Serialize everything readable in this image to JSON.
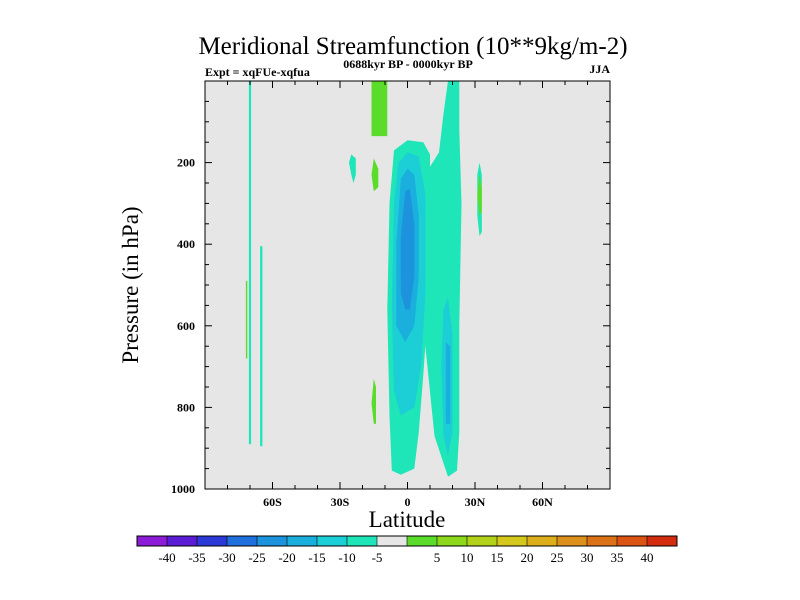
{
  "chart_data": {
    "type": "heatmap",
    "title": "Meridional Streamfunction (10**9kg/m-2)",
    "subtitle_left": "Expt = xqFUe-xqfua",
    "subtitle_center": "0688kyr BP - 0000kyr BP",
    "subtitle_right": "JJA",
    "xlabel": "Latitude",
    "ylabel": "Pressure (in hPa)",
    "xlim": [
      -90,
      90
    ],
    "ylim": [
      1000,
      0
    ],
    "x_ticks": [
      {
        "value": -60,
        "label": "60S"
      },
      {
        "value": -30,
        "label": "30S"
      },
      {
        "value": 0,
        "label": "0"
      },
      {
        "value": 30,
        "label": "30N"
      },
      {
        "value": 60,
        "label": "60N"
      }
    ],
    "y_ticks": [
      {
        "value": 200,
        "label": "200"
      },
      {
        "value": 400,
        "label": "400"
      },
      {
        "value": 600,
        "label": "600"
      },
      {
        "value": 800,
        "label": "800"
      },
      {
        "value": 1000,
        "label": "1000"
      }
    ],
    "colorbar": {
      "colors": [
        "#8c1cd6",
        "#5a1cd4",
        "#2b3ad6",
        "#1f6fdc",
        "#1c93dc",
        "#1aafdc",
        "#1ccfd6",
        "#1ee6b8",
        "#e6e6e6",
        "#5cdc2a",
        "#8cd81a",
        "#b2d21a",
        "#d4c81c",
        "#dcae1c",
        "#dc901c",
        "#dc7218",
        "#dc5414",
        "#d42c0e"
      ],
      "labels": [
        "-40",
        "-35",
        "-30",
        "-25",
        "-20",
        "-15",
        "-10",
        "-5",
        "5",
        "10",
        "15",
        "20",
        "25",
        "30",
        "35",
        "40"
      ]
    },
    "level_colors": {
      "n20": "#1c93dc",
      "n15": "#1aafdc",
      "n10": "#1ccfd6",
      "n5": "#1ee6b8",
      "p5": "#5cdc2a"
    },
    "regions": [
      {
        "level": "n5",
        "sign": "negative",
        "points": [
          [
            -7,
            955
          ],
          [
            -8,
            820
          ],
          [
            -9,
            560
          ],
          [
            -8,
            300
          ],
          [
            -6,
            170
          ],
          [
            0,
            145
          ],
          [
            7,
            150
          ],
          [
            10,
            180
          ],
          [
            10,
            370
          ],
          [
            9,
            560
          ],
          [
            7,
            720
          ],
          [
            5,
            860
          ],
          [
            3,
            950
          ],
          [
            -3,
            965
          ]
        ]
      },
      {
        "level": "n5",
        "sign": "negative",
        "points": [
          [
            6,
            380
          ],
          [
            10,
            210
          ],
          [
            14,
            175
          ],
          [
            16,
            80
          ],
          [
            18,
            0
          ],
          [
            23,
            0
          ],
          [
            23,
            120
          ],
          [
            24,
            300
          ],
          [
            23,
            600
          ],
          [
            23,
            860
          ],
          [
            22,
            955
          ],
          [
            18,
            970
          ],
          [
            12,
            870
          ],
          [
            7,
            600
          ]
        ]
      },
      {
        "level": "n10",
        "sign": "negative",
        "points": [
          [
            -6,
            760
          ],
          [
            -7,
            550
          ],
          [
            -6,
            300
          ],
          [
            -4,
            200
          ],
          [
            0,
            175
          ],
          [
            5,
            185
          ],
          [
            8,
            280
          ],
          [
            8,
            520
          ],
          [
            6,
            700
          ],
          [
            3,
            800
          ],
          [
            -3,
            820
          ]
        ]
      },
      {
        "level": "n10",
        "sign": "negative",
        "points": [
          [
            16,
            560
          ],
          [
            18,
            530
          ],
          [
            20,
            620
          ],
          [
            20,
            860
          ],
          [
            18,
            920
          ],
          [
            16,
            870
          ],
          [
            15,
            700
          ]
        ]
      },
      {
        "level": "n15",
        "sign": "negative",
        "points": [
          [
            -5,
            600
          ],
          [
            -5,
            400
          ],
          [
            -3,
            240
          ],
          [
            0,
            215
          ],
          [
            3,
            230
          ],
          [
            5,
            330
          ],
          [
            5,
            480
          ],
          [
            3,
            600
          ],
          [
            -1,
            640
          ]
        ]
      },
      {
        "level": "n15",
        "sign": "negative",
        "points": [
          [
            17,
            640
          ],
          [
            19,
            650
          ],
          [
            19,
            840
          ],
          [
            17,
            840
          ]
        ]
      },
      {
        "level": "n20",
        "sign": "negative",
        "points": [
          [
            -3,
            520
          ],
          [
            -3,
            380
          ],
          [
            -1,
            270
          ],
          [
            1,
            265
          ],
          [
            3,
            350
          ],
          [
            3,
            480
          ],
          [
            1,
            560
          ],
          [
            -1,
            560
          ]
        ]
      },
      {
        "level": "n5",
        "sign": "negative",
        "points": [
          [
            -70.5,
            0
          ],
          [
            -69.5,
            0
          ],
          [
            -69.5,
            890
          ],
          [
            -70.5,
            890
          ]
        ]
      },
      {
        "level": "n5",
        "sign": "negative",
        "points": [
          [
            -65.5,
            405
          ],
          [
            -64.5,
            405
          ],
          [
            -64.5,
            895
          ],
          [
            -65.5,
            895
          ]
        ]
      },
      {
        "level": "n5",
        "sign": "negative",
        "points": [
          [
            -25,
            230
          ],
          [
            -26,
            200
          ],
          [
            -25,
            180
          ],
          [
            -23,
            190
          ],
          [
            -23,
            230
          ],
          [
            -24,
            250
          ]
        ]
      },
      {
        "level": "n5",
        "sign": "negative",
        "points": [
          [
            32,
            200
          ],
          [
            33,
            230
          ],
          [
            33,
            370
          ],
          [
            32,
            380
          ],
          [
            31,
            330
          ],
          [
            31,
            230
          ]
        ]
      },
      {
        "level": "p5",
        "sign": "positive",
        "points": [
          [
            -16,
            0
          ],
          [
            -9,
            0
          ],
          [
            -9,
            135
          ],
          [
            -16,
            135
          ]
        ]
      },
      {
        "level": "p5",
        "sign": "positive",
        "points": [
          [
            -15,
            190
          ],
          [
            -13,
            215
          ],
          [
            -13,
            260
          ],
          [
            -15,
            270
          ],
          [
            -16,
            230
          ]
        ]
      },
      {
        "level": "p5",
        "sign": "positive",
        "points": [
          [
            -15,
            730
          ],
          [
            -14,
            750
          ],
          [
            -14,
            840
          ],
          [
            -15,
            840
          ],
          [
            -16,
            790
          ]
        ]
      },
      {
        "level": "p5",
        "sign": "positive",
        "points": [
          [
            32,
            230
          ],
          [
            33,
            260
          ],
          [
            33,
            320
          ],
          [
            32,
            330
          ],
          [
            31,
            280
          ]
        ]
      },
      {
        "level": "p5",
        "sign": "positive",
        "points": [
          [
            -71.8,
            490
          ],
          [
            -71.2,
            490
          ],
          [
            -71.2,
            680
          ],
          [
            -71.8,
            680
          ]
        ]
      }
    ]
  }
}
